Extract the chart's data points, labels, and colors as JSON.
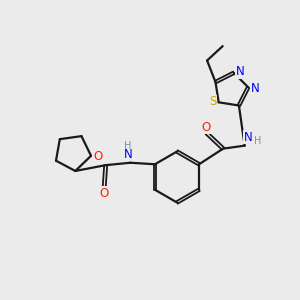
{
  "bg_color": "#ebebeb",
  "bond_color": "#1a1a1a",
  "colors": {
    "N": "#0000ff",
    "O": "#ff2200",
    "S": "#ccaa00",
    "C": "#1a1a1a",
    "H": "#6699aa"
  }
}
